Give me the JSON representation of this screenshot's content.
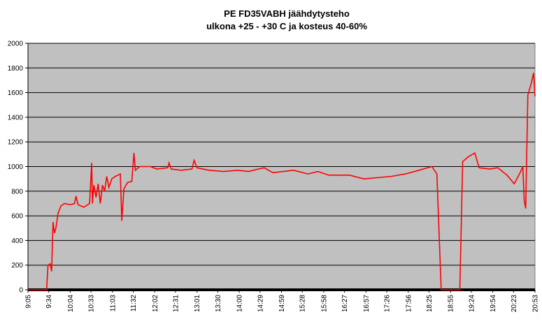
{
  "chart_data": {
    "type": "line",
    "title": [
      "PE FD35VABH jäähdytysteho",
      "ulkona +25 - +30 C ja kosteus 40-60%"
    ],
    "xlim": [
      545,
      1253
    ],
    "xticks": [
      {
        "value": 545,
        "label": "9:05"
      },
      {
        "value": 574,
        "label": "9:34"
      },
      {
        "value": 604,
        "label": "10:04"
      },
      {
        "value": 633,
        "label": "10:33"
      },
      {
        "value": 663,
        "label": "11:03"
      },
      {
        "value": 692,
        "label": "11:32"
      },
      {
        "value": 722,
        "label": "12:02"
      },
      {
        "value": 751,
        "label": "12:31"
      },
      {
        "value": 781,
        "label": "13:01"
      },
      {
        "value": 810,
        "label": "13:30"
      },
      {
        "value": 840,
        "label": "14:00"
      },
      {
        "value": 869,
        "label": "14:29"
      },
      {
        "value": 899,
        "label": "14:59"
      },
      {
        "value": 928,
        "label": "15:28"
      },
      {
        "value": 958,
        "label": "15:58"
      },
      {
        "value": 987,
        "label": "16:27"
      },
      {
        "value": 1017,
        "label": "16:57"
      },
      {
        "value": 1046,
        "label": "17:26"
      },
      {
        "value": 1076,
        "label": "17:56"
      },
      {
        "value": 1105,
        "label": "18:25"
      },
      {
        "value": 1135,
        "label": "18:55"
      },
      {
        "value": 1164,
        "label": "19:24"
      },
      {
        "value": 1194,
        "label": "19:54"
      },
      {
        "value": 1223,
        "label": "20:23"
      },
      {
        "value": 1253,
        "label": "20:53"
      }
    ],
    "ylim": [
      0,
      2000
    ],
    "yticks": [
      0,
      200,
      400,
      600,
      800,
      1000,
      1200,
      1400,
      1600,
      1800,
      2000
    ],
    "grid": true,
    "x": [
      545,
      571,
      573,
      576,
      578,
      580,
      582,
      584,
      587,
      591,
      596,
      604,
      610,
      612,
      615,
      623,
      631,
      634,
      635,
      637,
      640,
      643,
      646,
      649,
      652,
      655,
      658,
      662,
      667,
      674,
      676,
      679,
      684,
      690,
      693,
      695,
      701,
      716,
      725,
      740,
      742,
      745,
      759,
      774,
      777,
      781,
      798,
      818,
      838,
      853,
      867,
      875,
      887,
      916,
      936,
      950,
      965,
      994,
      1014,
      1033,
      1052,
      1072,
      1091,
      1109,
      1116,
      1122,
      1148,
      1152,
      1160,
      1169,
      1175,
      1190,
      1201,
      1214,
      1224,
      1233,
      1236,
      1238,
      1240,
      1243,
      1248,
      1251,
      1253
    ],
    "series": [
      {
        "color": "#ff0000",
        "values": [
          0,
          0,
          200,
          210,
          150,
          550,
          460,
          500,
          620,
          680,
          700,
          690,
          700,
          760,
          690,
          670,
          700,
          1030,
          700,
          850,
          750,
          860,
          700,
          850,
          800,
          920,
          830,
          900,
          920,
          940,
          560,
          820,
          870,
          880,
          1110,
          970,
          1000,
          1000,
          980,
          990,
          1030,
          980,
          970,
          980,
          1050,
          990,
          970,
          960,
          970,
          960,
          980,
          990,
          950,
          970,
          940,
          960,
          930,
          930,
          900,
          910,
          920,
          940,
          970,
          1000,
          940,
          0,
          0,
          1040,
          1080,
          1110,
          990,
          980,
          990,
          930,
          860,
          960,
          1000,
          720,
          660,
          1580,
          1680,
          1760,
          1570
        ]
      }
    ]
  }
}
